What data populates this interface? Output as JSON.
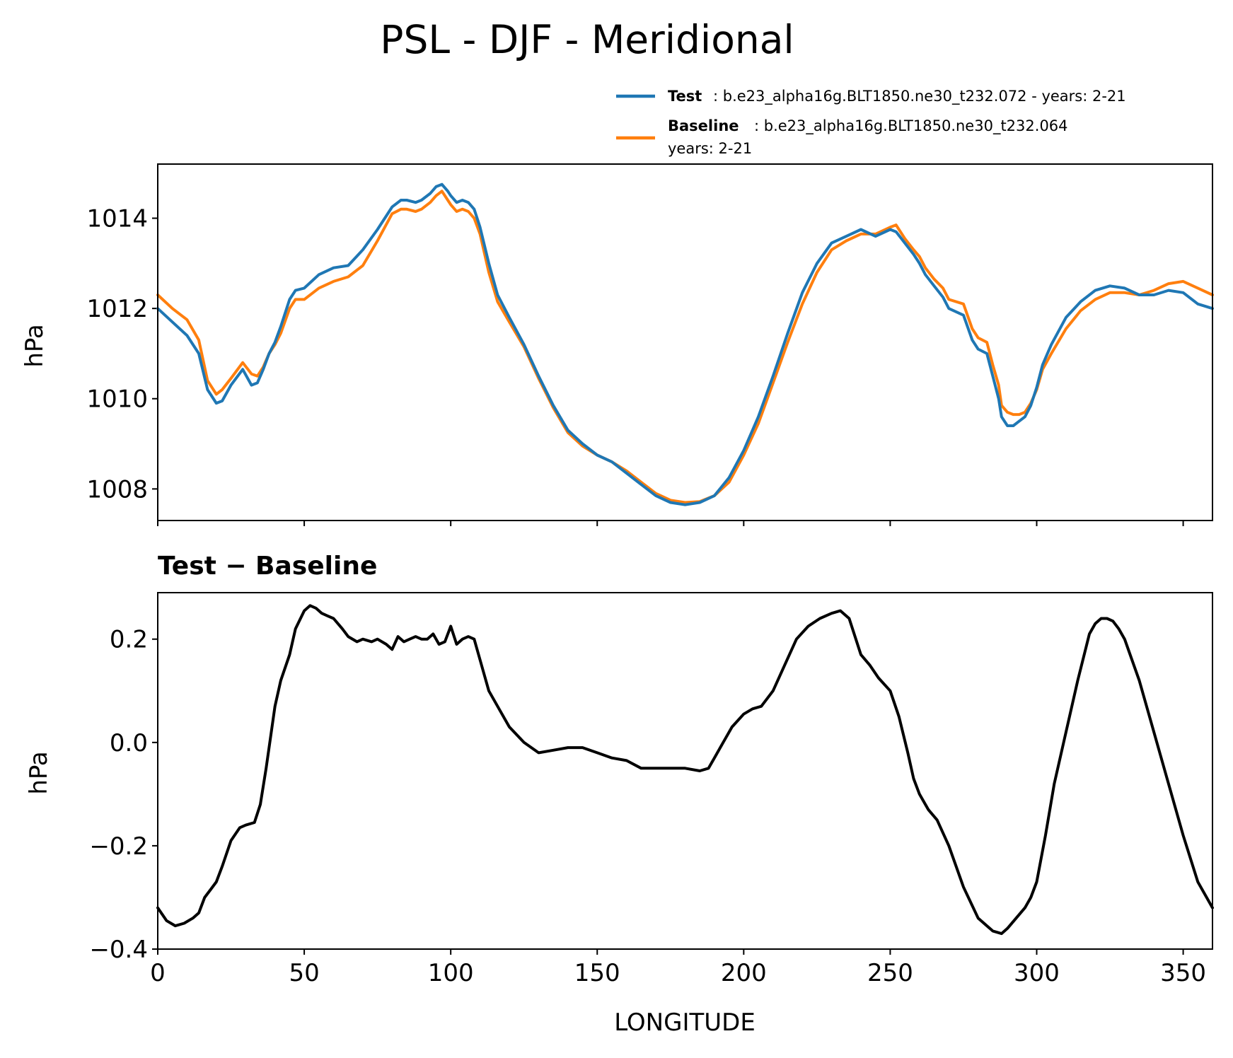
{
  "title": "PSL - DJF - Meridional",
  "legend": {
    "test_label": "Test",
    "test_text": ": b.e23_alpha16g.BLT1850.ne30_t232.072 - years: 2-21",
    "baseline_label": "Baseline",
    "baseline_text": ": b.e23_alpha16g.BLT1850.ne30_t232.064",
    "baseline_text2": "years: 2-21"
  },
  "colors": {
    "test": "#1f77b4",
    "baseline": "#ff7f0e",
    "diff": "#000000"
  },
  "chart_data": [
    {
      "type": "line",
      "title": "",
      "xlabel": "",
      "ylabel": "hPa",
      "xlim": [
        0,
        360
      ],
      "ylim": [
        1007.3,
        1015.2
      ],
      "yticks": [
        1008,
        1010,
        1012,
        1014
      ],
      "ytick_labels": [
        "1008",
        "1010",
        "1012",
        "1014"
      ],
      "xticks": [
        0,
        50,
        100,
        150,
        200,
        250,
        300,
        350
      ],
      "legend_position": "top-right, above axes",
      "series": [
        {
          "name": "Test",
          "x": [
            0,
            5,
            10,
            14,
            17,
            20,
            22,
            25,
            29,
            32,
            34,
            36,
            38,
            40,
            42,
            45,
            47,
            50,
            55,
            60,
            65,
            70,
            75,
            80,
            83,
            85,
            88,
            90,
            93,
            95,
            97,
            99,
            100,
            102,
            104,
            106,
            108,
            110,
            113,
            116,
            120,
            125,
            130,
            135,
            140,
            145,
            150,
            155,
            160,
            165,
            170,
            175,
            180,
            185,
            190,
            195,
            200,
            205,
            210,
            215,
            220,
            225,
            230,
            235,
            240,
            245,
            250,
            252,
            255,
            258,
            260,
            262,
            265,
            268,
            270,
            275,
            278,
            280,
            283,
            285,
            287,
            288,
            290,
            292,
            294,
            296,
            298,
            300,
            302,
            305,
            310,
            315,
            320,
            325,
            330,
            335,
            340,
            345,
            350,
            355,
            360
          ],
          "values": [
            1012.0,
            1011.7,
            1011.4,
            1011.0,
            1010.2,
            1009.9,
            1009.95,
            1010.3,
            1010.65,
            1010.3,
            1010.35,
            1010.65,
            1011.0,
            1011.25,
            1011.6,
            1012.2,
            1012.4,
            1012.45,
            1012.75,
            1012.9,
            1012.95,
            1013.3,
            1013.75,
            1014.25,
            1014.4,
            1014.4,
            1014.35,
            1014.4,
            1014.55,
            1014.7,
            1014.75,
            1014.6,
            1014.5,
            1014.35,
            1014.4,
            1014.35,
            1014.2,
            1013.8,
            1013.0,
            1012.3,
            1011.8,
            1011.2,
            1010.5,
            1009.85,
            1009.3,
            1009.0,
            1008.75,
            1008.6,
            1008.35,
            1008.1,
            1007.85,
            1007.7,
            1007.65,
            1007.7,
            1007.85,
            1008.25,
            1008.85,
            1009.6,
            1010.5,
            1011.45,
            1012.35,
            1013.0,
            1013.45,
            1013.6,
            1013.75,
            1013.6,
            1013.75,
            1013.7,
            1013.45,
            1013.2,
            1013.0,
            1012.75,
            1012.5,
            1012.25,
            1012.0,
            1011.85,
            1011.3,
            1011.1,
            1011.0,
            1010.5,
            1010.0,
            1009.6,
            1009.4,
            1009.4,
            1009.5,
            1009.6,
            1009.85,
            1010.25,
            1010.75,
            1011.2,
            1011.8,
            1012.15,
            1012.4,
            1012.5,
            1012.45,
            1012.3,
            1012.3,
            1012.4,
            1012.35,
            1012.1,
            1012.0
          ]
        },
        {
          "name": "Baseline",
          "x": [
            0,
            5,
            10,
            14,
            17,
            20,
            22,
            25,
            29,
            32,
            34,
            36,
            38,
            40,
            42,
            45,
            47,
            50,
            55,
            60,
            65,
            70,
            75,
            80,
            83,
            85,
            88,
            90,
            93,
            95,
            97,
            99,
            100,
            102,
            104,
            106,
            108,
            110,
            113,
            116,
            120,
            125,
            130,
            135,
            140,
            145,
            150,
            155,
            160,
            165,
            170,
            175,
            180,
            185,
            190,
            195,
            200,
            205,
            210,
            215,
            220,
            225,
            230,
            235,
            240,
            245,
            250,
            252,
            255,
            258,
            260,
            262,
            265,
            268,
            270,
            275,
            278,
            280,
            283,
            285,
            287,
            288,
            290,
            292,
            294,
            296,
            298,
            300,
            302,
            305,
            310,
            315,
            320,
            325,
            330,
            335,
            340,
            345,
            350,
            355,
            360
          ],
          "values": [
            1012.3,
            1012.0,
            1011.75,
            1011.3,
            1010.4,
            1010.1,
            1010.2,
            1010.45,
            1010.8,
            1010.55,
            1010.5,
            1010.7,
            1011.0,
            1011.2,
            1011.45,
            1012.0,
            1012.2,
            1012.2,
            1012.45,
            1012.6,
            1012.7,
            1012.95,
            1013.5,
            1014.1,
            1014.2,
            1014.2,
            1014.15,
            1014.2,
            1014.35,
            1014.5,
            1014.6,
            1014.4,
            1014.3,
            1014.15,
            1014.2,
            1014.15,
            1014.0,
            1013.65,
            1012.8,
            1012.15,
            1011.7,
            1011.15,
            1010.45,
            1009.8,
            1009.25,
            1008.95,
            1008.75,
            1008.6,
            1008.4,
            1008.15,
            1007.9,
            1007.75,
            1007.7,
            1007.72,
            1007.85,
            1008.15,
            1008.75,
            1009.45,
            1010.35,
            1011.25,
            1012.1,
            1012.8,
            1013.3,
            1013.5,
            1013.65,
            1013.65,
            1013.8,
            1013.85,
            1013.55,
            1013.3,
            1013.15,
            1012.9,
            1012.65,
            1012.45,
            1012.2,
            1012.1,
            1011.55,
            1011.35,
            1011.25,
            1010.75,
            1010.3,
            1009.85,
            1009.7,
            1009.65,
            1009.65,
            1009.7,
            1009.9,
            1010.2,
            1010.65,
            1011.0,
            1011.55,
            1011.95,
            1012.2,
            1012.35,
            1012.35,
            1012.3,
            1012.4,
            1012.55,
            1012.6,
            1012.45,
            1012.3
          ]
        }
      ]
    },
    {
      "type": "line",
      "title": "Test − Baseline",
      "xlabel": "LONGITUDE",
      "ylabel": "hPa",
      "xlim": [
        0,
        360
      ],
      "ylim": [
        -0.4,
        0.29
      ],
      "yticks": [
        -0.4,
        -0.2,
        0.0,
        0.2
      ],
      "ytick_labels": [
        "−0.4",
        "−0.2",
        "0.0",
        "0.2"
      ],
      "xticks": [
        0,
        50,
        100,
        150,
        200,
        250,
        300,
        350
      ],
      "xtick_labels": [
        "0",
        "50",
        "100",
        "150",
        "200",
        "250",
        "300",
        "350"
      ],
      "series": [
        {
          "name": "Test − Baseline",
          "x": [
            0,
            3,
            6,
            9,
            12,
            14,
            16,
            18,
            20,
            22,
            25,
            28,
            30,
            33,
            35,
            37,
            40,
            42,
            45,
            47,
            50,
            52,
            54,
            56,
            58,
            60,
            63,
            65,
            68,
            70,
            73,
            75,
            78,
            80,
            82,
            84,
            86,
            88,
            90,
            92,
            94,
            96,
            98,
            100,
            102,
            104,
            106,
            108,
            110,
            113,
            116,
            120,
            125,
            130,
            135,
            140,
            145,
            150,
            155,
            160,
            165,
            170,
            175,
            180,
            185,
            188,
            190,
            193,
            196,
            200,
            203,
            206,
            210,
            214,
            218,
            222,
            226,
            230,
            233,
            236,
            240,
            243,
            246,
            250,
            253,
            256,
            258,
            260,
            263,
            266,
            270,
            275,
            280,
            285,
            288,
            290,
            293,
            296,
            298,
            300,
            303,
            306,
            310,
            314,
            318,
            320,
            322,
            324,
            326,
            328,
            330,
            335,
            340,
            345,
            350,
            355,
            360
          ],
          "values": [
            -0.32,
            -0.345,
            -0.355,
            -0.35,
            -0.34,
            -0.33,
            -0.3,
            -0.285,
            -0.27,
            -0.24,
            -0.19,
            -0.165,
            -0.16,
            -0.155,
            -0.12,
            -0.05,
            0.07,
            0.12,
            0.17,
            0.22,
            0.255,
            0.265,
            0.26,
            0.25,
            0.245,
            0.24,
            0.22,
            0.205,
            0.195,
            0.2,
            0.195,
            0.2,
            0.19,
            0.18,
            0.205,
            0.195,
            0.2,
            0.205,
            0.2,
            0.2,
            0.21,
            0.19,
            0.195,
            0.225,
            0.19,
            0.2,
            0.205,
            0.2,
            0.16,
            0.1,
            0.07,
            0.03,
            0.0,
            -0.02,
            -0.015,
            -0.01,
            -0.01,
            -0.02,
            -0.03,
            -0.035,
            -0.05,
            -0.05,
            -0.05,
            -0.05,
            -0.055,
            -0.05,
            -0.03,
            0.0,
            0.03,
            0.055,
            0.065,
            0.07,
            0.1,
            0.15,
            0.2,
            0.225,
            0.24,
            0.25,
            0.255,
            0.24,
            0.17,
            0.15,
            0.125,
            0.1,
            0.05,
            -0.02,
            -0.07,
            -0.1,
            -0.13,
            -0.15,
            -0.2,
            -0.28,
            -0.34,
            -0.365,
            -0.37,
            -0.36,
            -0.34,
            -0.32,
            -0.3,
            -0.27,
            -0.18,
            -0.08,
            0.02,
            0.12,
            0.21,
            0.23,
            0.24,
            0.24,
            0.235,
            0.22,
            0.2,
            0.12,
            0.02,
            -0.08,
            -0.18,
            -0.27,
            -0.32
          ]
        }
      ]
    }
  ]
}
